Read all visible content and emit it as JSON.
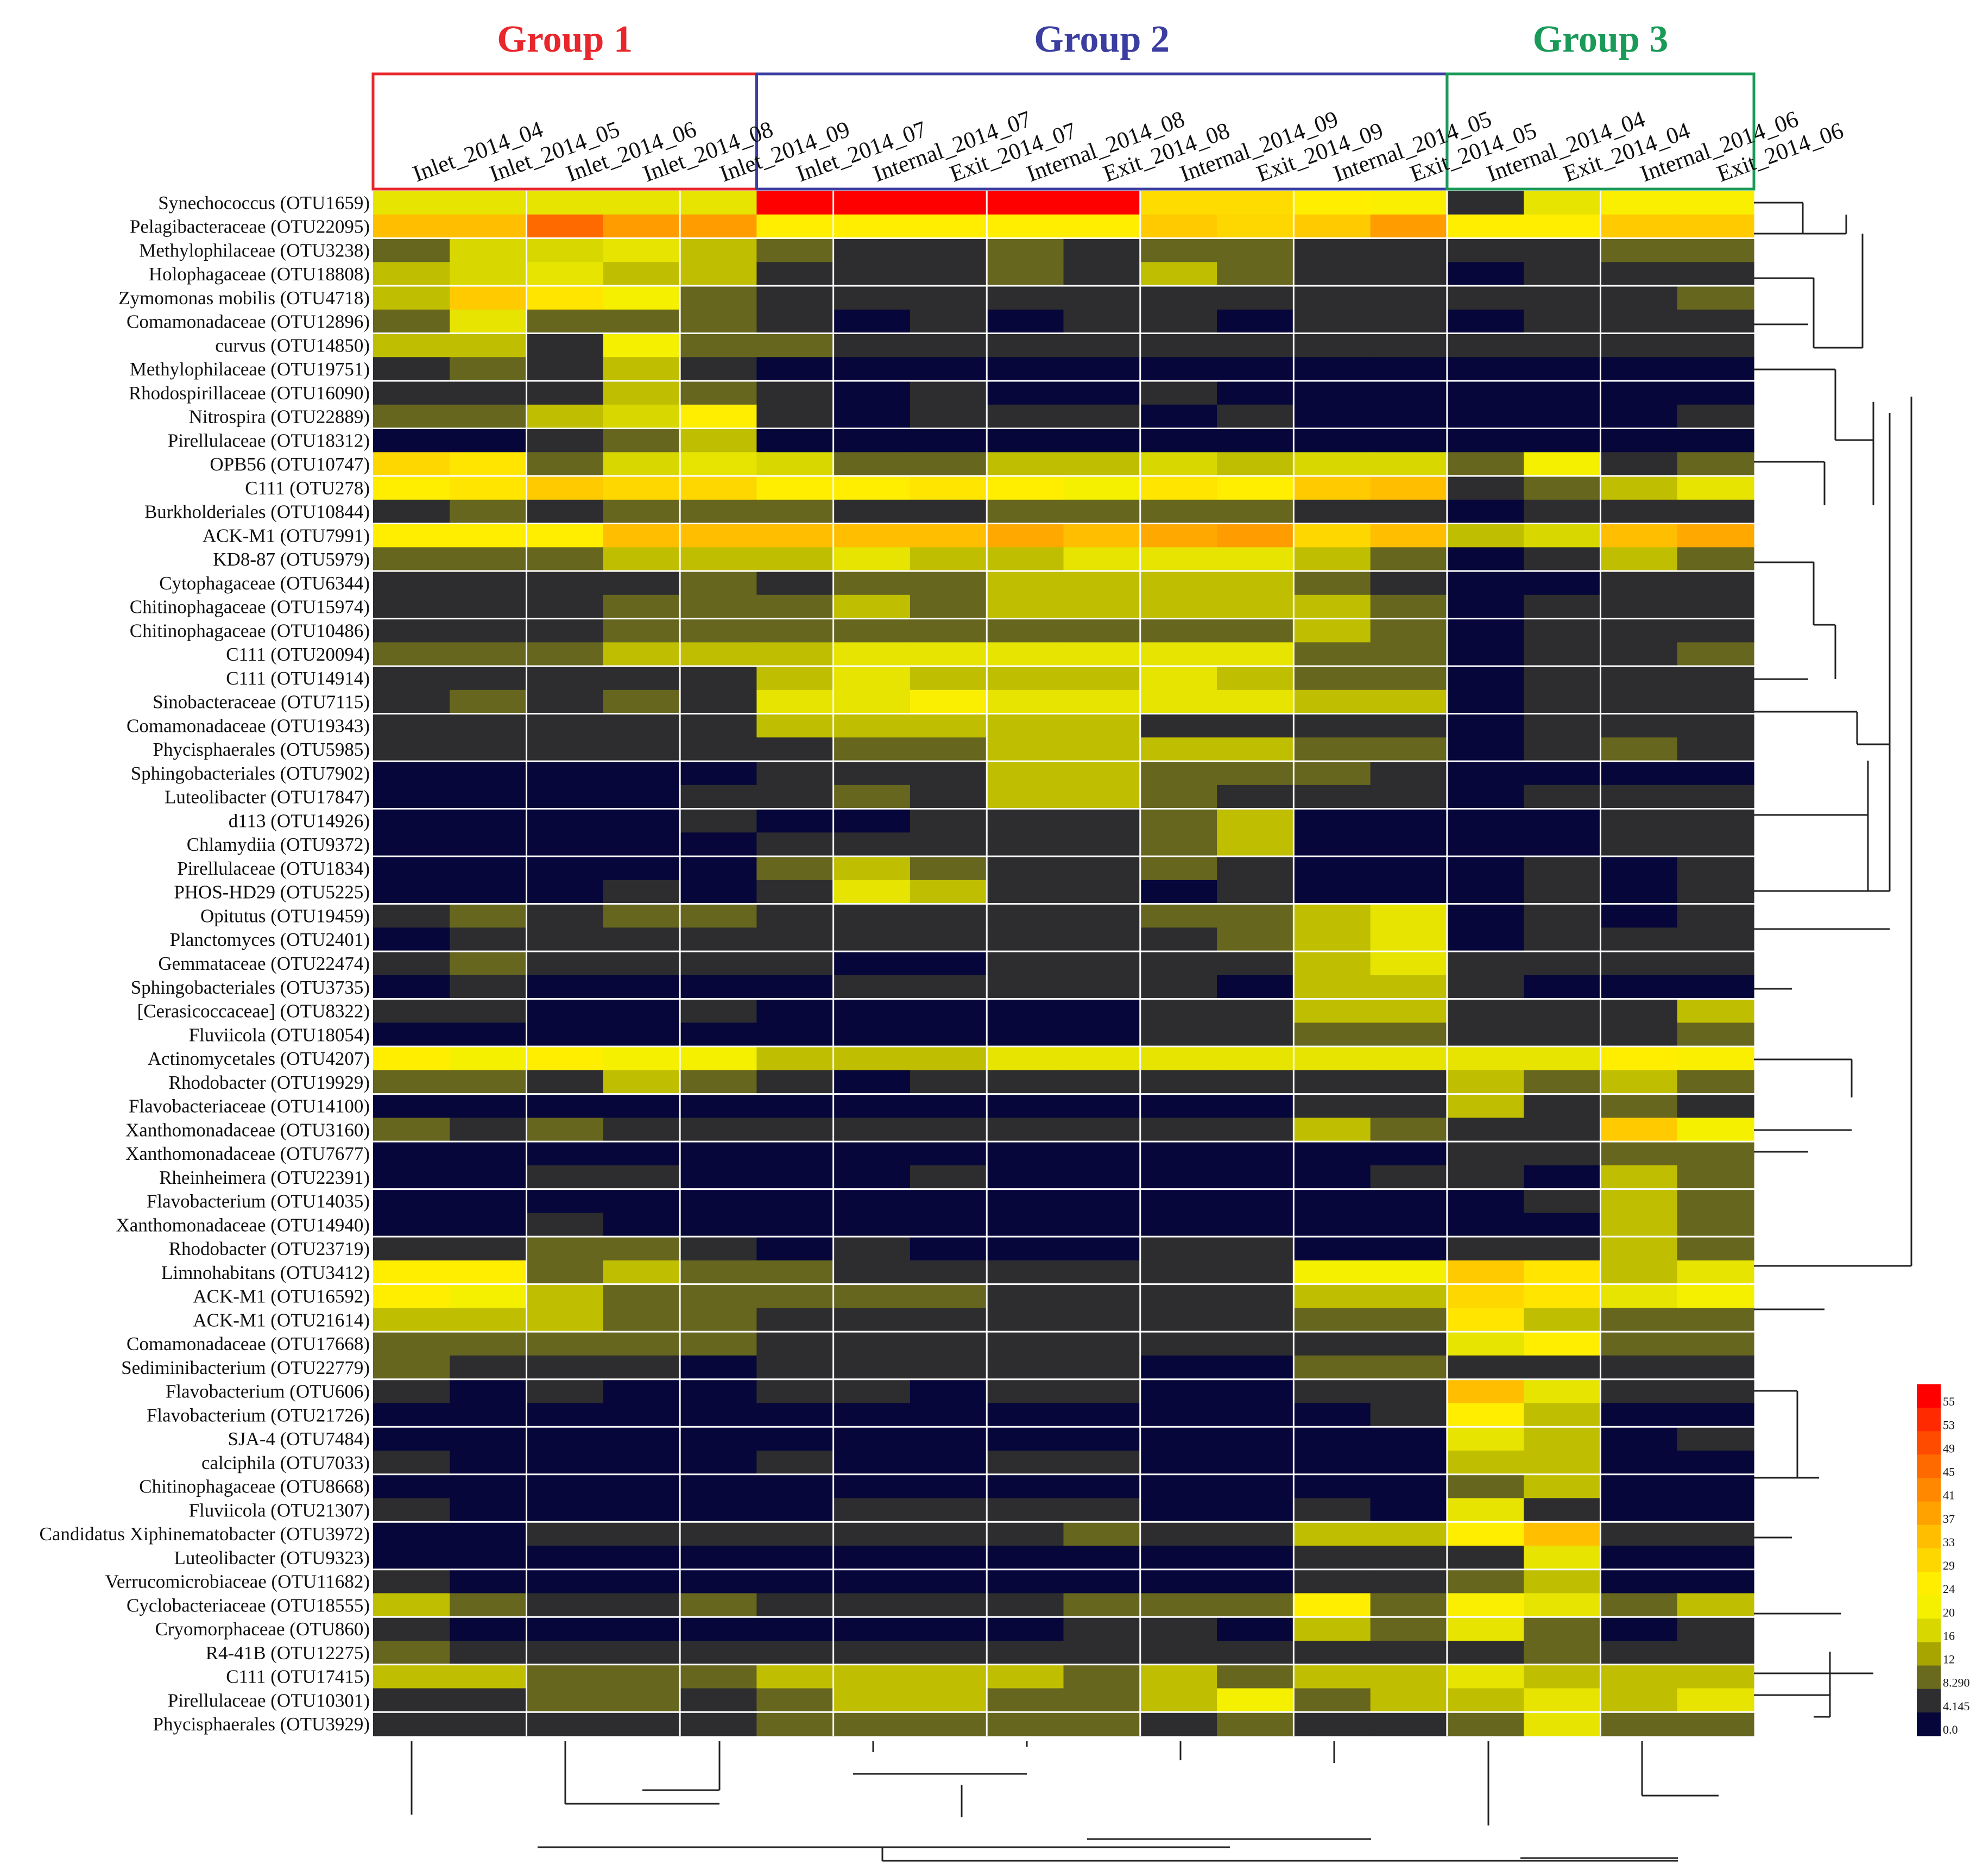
{
  "chart_data": {
    "type": "heatmap",
    "title": "",
    "groups": [
      {
        "label": "Group 1",
        "color": "#e8262b"
      },
      {
        "label": "Group 2",
        "color": "#3b3ea0"
      },
      {
        "label": "Group 3",
        "color": "#1a9a58"
      }
    ],
    "columns": [
      "Inlet_2014_04",
      "Inlet_2014_05",
      "Inlet_2014_06",
      "Inlet_2014_08",
      "Inlet_2014_09",
      "Inlet_2014_07",
      "Internal_2014_07",
      "Exit_2014_07",
      "Internal_2014_08",
      "Exit_2014_08",
      "Internal_2014_09",
      "Exit_2014_09",
      "Internal_2014_05",
      "Exit_2014_05",
      "Internal_2014_04",
      "Exit_2014_04",
      "Internal_2014_06",
      "Exit_2014_06"
    ],
    "rows": [
      "Synechococcus (OTU1659)",
      "Pelagibacteraceae (OTU22095)",
      "Methylophilaceae (OTU3238)",
      "Holophagaceae (OTU18808)",
      "Zymomonas mobilis (OTU4718)",
      "Comamonadaceae (OTU12896)",
      "curvus (OTU14850)",
      "Methylophilaceae (OTU19751)",
      "Rhodospirillaceae (OTU16090)",
      "Nitrospira (OTU22889)",
      "Pirellulaceae (OTU18312)",
      "OPB56 (OTU10747)",
      "C111 (OTU278)",
      "Burkholderiales (OTU10844)",
      "ACK-M1 (OTU7991)",
      "KD8-87 (OTU5979)",
      "Cytophagaceae (OTU6344)",
      "Chitinophagaceae (OTU15974)",
      "Chitinophagaceae (OTU10486)",
      "C111 (OTU20094)",
      "C111 (OTU14914)",
      "Sinobacteraceae (OTU7115)",
      "Comamonadaceae (OTU19343)",
      "Phycisphaerales (OTU5985)",
      "Sphingobacteriales (OTU7902)",
      "Luteolibacter (OTU17847)",
      "d113 (OTU14926)",
      "Chlamydiia (OTU9372)",
      "Pirellulaceae (OTU1834)",
      "PHOS-HD29 (OTU5225)",
      "Opitutus (OTU19459)",
      "Planctomyces (OTU2401)",
      "Gemmataceae (OTU22474)",
      "Sphingobacteriales (OTU3735)",
      "[Cerasicoccaceae] (OTU8322)",
      "Fluviicola (OTU18054)",
      "Actinomycetales (OTU4207)",
      "Rhodobacter (OTU19929)",
      "Flavobacteriaceae (OTU14100)",
      "Xanthomonadaceae (OTU3160)",
      "Xanthomonadaceae (OTU7677)",
      "Rheinheimera (OTU22391)",
      "Flavobacterium (OTU14035)",
      "Xanthomonadaceae (OTU14940)",
      "Rhodobacter (OTU23719)",
      "Limnohabitans (OTU3412)",
      "ACK-M1 (OTU16592)",
      "ACK-M1 (OTU21614)",
      "Comamonadaceae (OTU17668)",
      "Sediminibacterium (OTU22779)",
      "Flavobacterium (OTU606)",
      "Flavobacterium (OTU21726)",
      "SJA-4 (OTU7484)",
      "calciphila (OTU7033)",
      "Chitinophagaceae (OTU8668)",
      "Fluviicola (OTU21307)",
      "Candidatus Xiphinematobacter (OTU3972)",
      "Luteolibacter (OTU9323)",
      "Verrucomicrobiaceae (OTU11682)",
      "Cyclobacteriaceae (OTU18555)",
      "Cryomorphaceae (OTU860)",
      "R4-41B (OTU12275)",
      "C111 (OTU17415)",
      "Pirellulaceae (OTU10301)",
      "Phycisphaerales (OTU3929)"
    ],
    "values": [
      [
        18,
        18,
        18,
        18,
        18,
        55,
        55,
        55,
        55,
        55,
        28,
        28,
        24,
        22,
        4,
        18,
        22,
        22
      ],
      [
        33,
        33,
        45,
        38,
        38,
        24,
        24,
        24,
        24,
        24,
        31,
        29,
        31,
        38,
        24,
        24,
        31,
        31
      ],
      [
        8,
        16,
        16,
        18,
        14,
        8,
        4,
        4,
        8,
        4,
        8,
        8,
        4,
        4,
        4,
        4,
        8,
        8
      ],
      [
        14,
        16,
        18,
        14,
        14,
        4,
        4,
        4,
        8,
        4,
        14,
        8,
        4,
        4,
        0,
        4,
        4,
        4
      ],
      [
        14,
        31,
        26,
        20,
        8,
        4,
        4,
        4,
        4,
        4,
        4,
        4,
        4,
        4,
        4,
        4,
        4,
        8
      ],
      [
        8,
        18,
        8,
        8,
        8,
        4,
        0,
        4,
        0,
        4,
        4,
        0,
        4,
        4,
        0,
        4,
        4,
        4
      ],
      [
        14,
        14,
        4,
        20,
        8,
        8,
        4,
        4,
        4,
        4,
        4,
        4,
        4,
        4,
        4,
        4,
        4,
        4
      ],
      [
        4,
        8,
        4,
        14,
        4,
        0,
        0,
        0,
        0,
        0,
        0,
        0,
        0,
        0,
        0,
        0,
        0,
        0
      ],
      [
        4,
        4,
        4,
        14,
        8,
        4,
        0,
        4,
        0,
        0,
        4,
        0,
        0,
        0,
        0,
        0,
        0,
        0
      ],
      [
        8,
        8,
        14,
        16,
        24,
        4,
        0,
        4,
        4,
        4,
        0,
        4,
        0,
        0,
        0,
        0,
        0,
        4
      ],
      [
        0,
        0,
        4,
        8,
        14,
        0,
        0,
        0,
        0,
        0,
        0,
        0,
        0,
        0,
        0,
        0,
        0,
        0
      ],
      [
        29,
        26,
        8,
        16,
        18,
        16,
        8,
        8,
        14,
        14,
        16,
        14,
        16,
        16,
        8,
        20,
        4,
        8
      ],
      [
        24,
        26,
        31,
        29,
        29,
        24,
        24,
        26,
        24,
        20,
        26,
        24,
        31,
        33,
        4,
        8,
        14,
        18
      ],
      [
        4,
        8,
        4,
        8,
        8,
        8,
        4,
        4,
        8,
        8,
        8,
        8,
        4,
        4,
        0,
        4,
        4,
        4
      ],
      [
        24,
        24,
        24,
        33,
        33,
        33,
        33,
        33,
        36,
        33,
        36,
        38,
        29,
        33,
        14,
        16,
        33,
        36
      ],
      [
        8,
        8,
        8,
        14,
        14,
        14,
        18,
        14,
        14,
        18,
        18,
        18,
        14,
        8,
        0,
        4,
        14,
        8
      ],
      [
        4,
        4,
        4,
        4,
        8,
        4,
        8,
        8,
        14,
        14,
        14,
        14,
        8,
        4,
        0,
        0,
        4,
        4
      ],
      [
        4,
        4,
        4,
        8,
        8,
        8,
        14,
        8,
        14,
        14,
        14,
        14,
        14,
        8,
        0,
        4,
        4,
        4
      ],
      [
        4,
        4,
        4,
        8,
        8,
        8,
        8,
        8,
        8,
        8,
        8,
        8,
        14,
        8,
        0,
        4,
        4,
        4
      ],
      [
        8,
        8,
        8,
        14,
        14,
        14,
        18,
        18,
        18,
        18,
        18,
        18,
        8,
        8,
        0,
        4,
        4,
        8
      ],
      [
        4,
        4,
        4,
        4,
        4,
        14,
        18,
        14,
        14,
        14,
        18,
        14,
        8,
        8,
        0,
        4,
        4,
        4
      ],
      [
        4,
        8,
        4,
        8,
        4,
        18,
        18,
        22,
        18,
        18,
        18,
        18,
        14,
        14,
        0,
        4,
        4,
        4
      ],
      [
        4,
        4,
        4,
        4,
        4,
        14,
        14,
        14,
        14,
        14,
        4,
        4,
        4,
        4,
        0,
        4,
        4,
        4
      ],
      [
        4,
        4,
        4,
        4,
        4,
        4,
        8,
        8,
        14,
        14,
        14,
        14,
        8,
        8,
        0,
        4,
        8,
        4
      ],
      [
        0,
        0,
        0,
        0,
        0,
        4,
        4,
        4,
        14,
        14,
        8,
        8,
        8,
        4,
        0,
        0,
        0,
        0
      ],
      [
        0,
        0,
        0,
        0,
        4,
        4,
        8,
        4,
        14,
        14,
        8,
        4,
        4,
        4,
        0,
        4,
        4,
        4
      ],
      [
        0,
        0,
        0,
        0,
        4,
        0,
        0,
        4,
        4,
        4,
        8,
        14,
        0,
        0,
        0,
        0,
        4,
        4
      ],
      [
        0,
        0,
        0,
        0,
        0,
        4,
        4,
        4,
        4,
        4,
        8,
        14,
        0,
        0,
        0,
        0,
        4,
        4
      ],
      [
        0,
        0,
        0,
        0,
        0,
        8,
        14,
        8,
        4,
        4,
        8,
        4,
        0,
        0,
        0,
        4,
        0,
        4
      ],
      [
        0,
        0,
        0,
        4,
        0,
        4,
        18,
        14,
        4,
        4,
        0,
        4,
        0,
        0,
        0,
        4,
        0,
        4
      ],
      [
        4,
        8,
        4,
        8,
        8,
        4,
        4,
        4,
        4,
        4,
        8,
        8,
        14,
        18,
        0,
        4,
        0,
        4
      ],
      [
        0,
        4,
        4,
        4,
        4,
        4,
        4,
        4,
        4,
        4,
        4,
        8,
        14,
        18,
        0,
        4,
        4,
        4
      ],
      [
        4,
        8,
        4,
        4,
        4,
        4,
        0,
        0,
        4,
        4,
        4,
        4,
        14,
        18,
        4,
        4,
        4,
        4
      ],
      [
        0,
        4,
        0,
        0,
        0,
        0,
        4,
        4,
        4,
        4,
        4,
        0,
        14,
        14,
        4,
        0,
        0,
        0
      ],
      [
        4,
        4,
        0,
        0,
        4,
        0,
        0,
        0,
        0,
        0,
        4,
        4,
        14,
        14,
        4,
        4,
        4,
        14
      ],
      [
        0,
        0,
        0,
        0,
        0,
        0,
        0,
        0,
        0,
        0,
        4,
        4,
        8,
        8,
        4,
        4,
        4,
        8
      ],
      [
        24,
        20,
        24,
        20,
        20,
        14,
        14,
        14,
        18,
        18,
        18,
        18,
        18,
        18,
        18,
        18,
        24,
        22
      ],
      [
        8,
        8,
        4,
        14,
        8,
        4,
        0,
        4,
        4,
        4,
        4,
        4,
        4,
        4,
        14,
        8,
        14,
        8
      ],
      [
        0,
        0,
        0,
        0,
        0,
        0,
        0,
        0,
        0,
        0,
        0,
        0,
        4,
        4,
        14,
        4,
        8,
        4
      ],
      [
        8,
        4,
        8,
        4,
        4,
        4,
        4,
        4,
        4,
        4,
        4,
        4,
        14,
        8,
        4,
        4,
        31,
        20
      ],
      [
        0,
        0,
        0,
        0,
        0,
        0,
        0,
        0,
        0,
        0,
        0,
        0,
        0,
        0,
        4,
        4,
        8,
        8
      ],
      [
        0,
        0,
        4,
        4,
        0,
        0,
        0,
        4,
        0,
        0,
        0,
        0,
        0,
        4,
        4,
        0,
        14,
        8
      ],
      [
        0,
        0,
        0,
        0,
        0,
        0,
        0,
        0,
        0,
        0,
        0,
        0,
        0,
        0,
        0,
        4,
        14,
        8
      ],
      [
        0,
        0,
        4,
        0,
        0,
        0,
        0,
        0,
        0,
        0,
        0,
        0,
        0,
        0,
        0,
        0,
        14,
        8
      ],
      [
        4,
        4,
        8,
        8,
        4,
        0,
        4,
        0,
        0,
        0,
        4,
        4,
        0,
        0,
        4,
        4,
        14,
        8
      ],
      [
        24,
        24,
        8,
        14,
        8,
        8,
        4,
        4,
        4,
        4,
        4,
        4,
        20,
        20,
        31,
        26,
        14,
        18
      ],
      [
        24,
        20,
        14,
        8,
        8,
        8,
        8,
        8,
        4,
        4,
        4,
        4,
        14,
        14,
        29,
        26,
        18,
        20
      ],
      [
        14,
        14,
        14,
        8,
        8,
        4,
        4,
        4,
        4,
        4,
        4,
        4,
        8,
        8,
        26,
        14,
        8,
        8
      ],
      [
        8,
        8,
        8,
        8,
        8,
        4,
        4,
        4,
        4,
        4,
        4,
        4,
        4,
        4,
        18,
        24,
        8,
        8
      ],
      [
        8,
        4,
        4,
        4,
        0,
        4,
        4,
        4,
        4,
        4,
        0,
        0,
        8,
        8,
        4,
        4,
        4,
        4
      ],
      [
        4,
        0,
        4,
        0,
        0,
        4,
        4,
        0,
        4,
        4,
        0,
        0,
        4,
        4,
        33,
        18,
        4,
        4
      ],
      [
        0,
        0,
        0,
        0,
        0,
        0,
        0,
        0,
        0,
        0,
        0,
        0,
        0,
        4,
        24,
        14,
        0,
        0
      ],
      [
        0,
        0,
        0,
        0,
        0,
        0,
        0,
        0,
        0,
        0,
        0,
        0,
        0,
        0,
        18,
        14,
        0,
        4
      ],
      [
        4,
        0,
        0,
        0,
        0,
        4,
        0,
        0,
        4,
        4,
        0,
        0,
        0,
        0,
        14,
        14,
        0,
        0
      ],
      [
        0,
        0,
        0,
        0,
        0,
        0,
        0,
        0,
        0,
        0,
        0,
        0,
        0,
        0,
        8,
        14,
        0,
        0
      ],
      [
        4,
        0,
        0,
        0,
        0,
        0,
        4,
        4,
        4,
        4,
        0,
        0,
        4,
        0,
        18,
        4,
        0,
        0
      ],
      [
        0,
        0,
        4,
        4,
        4,
        4,
        4,
        4,
        4,
        8,
        4,
        4,
        14,
        14,
        24,
        33,
        4,
        4
      ],
      [
        0,
        0,
        0,
        0,
        0,
        0,
        0,
        0,
        0,
        0,
        0,
        0,
        4,
        4,
        4,
        18,
        0,
        0
      ],
      [
        4,
        0,
        0,
        0,
        0,
        0,
        0,
        0,
        0,
        0,
        0,
        0,
        4,
        4,
        8,
        14,
        0,
        0
      ],
      [
        14,
        8,
        4,
        4,
        8,
        4,
        4,
        4,
        4,
        8,
        8,
        8,
        24,
        8,
        22,
        18,
        8,
        14
      ],
      [
        4,
        0,
        0,
        0,
        0,
        0,
        0,
        0,
        0,
        4,
        4,
        0,
        14,
        8,
        18,
        8,
        0,
        4
      ],
      [
        8,
        4,
        4,
        4,
        4,
        4,
        4,
        4,
        4,
        4,
        4,
        4,
        4,
        4,
        4,
        8,
        4,
        4
      ],
      [
        14,
        14,
        8,
        8,
        8,
        14,
        14,
        14,
        14,
        8,
        14,
        8,
        14,
        14,
        18,
        14,
        14,
        14
      ],
      [
        4,
        4,
        8,
        8,
        4,
        8,
        14,
        14,
        8,
        8,
        14,
        20,
        8,
        14,
        14,
        18,
        14,
        18
      ],
      [
        4,
        4,
        4,
        4,
        4,
        8,
        8,
        8,
        8,
        8,
        4,
        8,
        4,
        4,
        8,
        18,
        8,
        8
      ]
    ],
    "legend": {
      "ticks": [
        "55",
        "53",
        "49",
        "45",
        "41",
        "37",
        "33",
        "29",
        "24",
        "20",
        "16",
        "12",
        "8.290",
        "4.145",
        "0.0"
      ],
      "colors": [
        "#ff0000",
        "#ff2a00",
        "#ff4b00",
        "#ff6a00",
        "#ff8800",
        "#ffa200",
        "#ffbf00",
        "#ffd700",
        "#ffee00",
        "#f4f000",
        "#d8d800",
        "#a8a400",
        "#6a6a1e",
        "#2e2e30",
        "#06063a"
      ],
      "placement": "right",
      "range": [
        0,
        55
      ]
    },
    "xlabel": "",
    "ylabel": ""
  }
}
